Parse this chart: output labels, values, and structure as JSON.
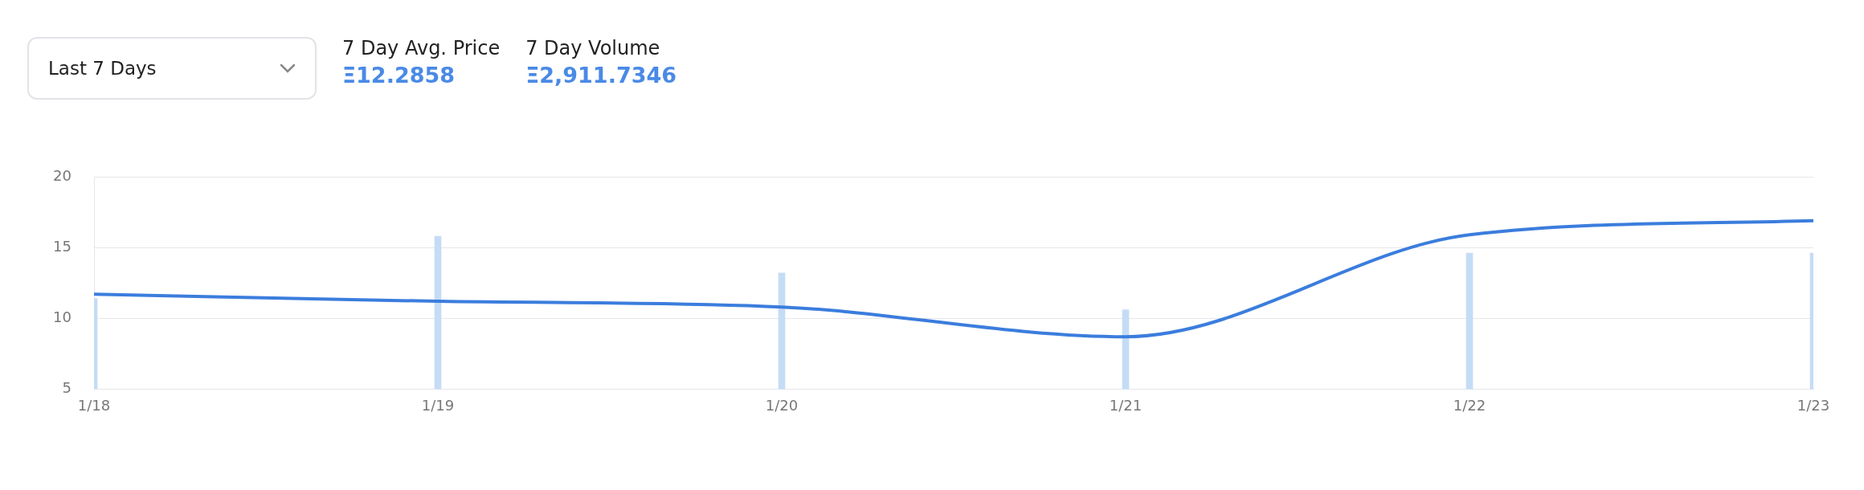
{
  "chart_data": {
    "type": "line",
    "categories": [
      "1/18",
      "1/19",
      "1/20",
      "1/21",
      "1/22",
      "1/23"
    ],
    "series": [
      {
        "color": "#3b7ddd",
        "values": [
          11.7,
          11.2,
          10.8,
          8.7,
          15.9,
          16.9
        ]
      },
      {
        "type": "bar",
        "color": "#c5dcf5",
        "values": [
          11.4,
          15.8,
          13.2,
          10.6,
          14.6,
          14.6
        ]
      }
    ],
    "ylim": [
      5,
      20
    ],
    "yticks": [
      5,
      10,
      15,
      20
    ],
    "grid": "y",
    "legend": false,
    "marker": "none",
    "line_style": "solid",
    "annotations": [
      "Last 7 Days",
      "7 Day Avg. Price",
      "Ξ12.2858",
      "7 Day Volume",
      "Ξ2,911.7346"
    ]
  }
}
